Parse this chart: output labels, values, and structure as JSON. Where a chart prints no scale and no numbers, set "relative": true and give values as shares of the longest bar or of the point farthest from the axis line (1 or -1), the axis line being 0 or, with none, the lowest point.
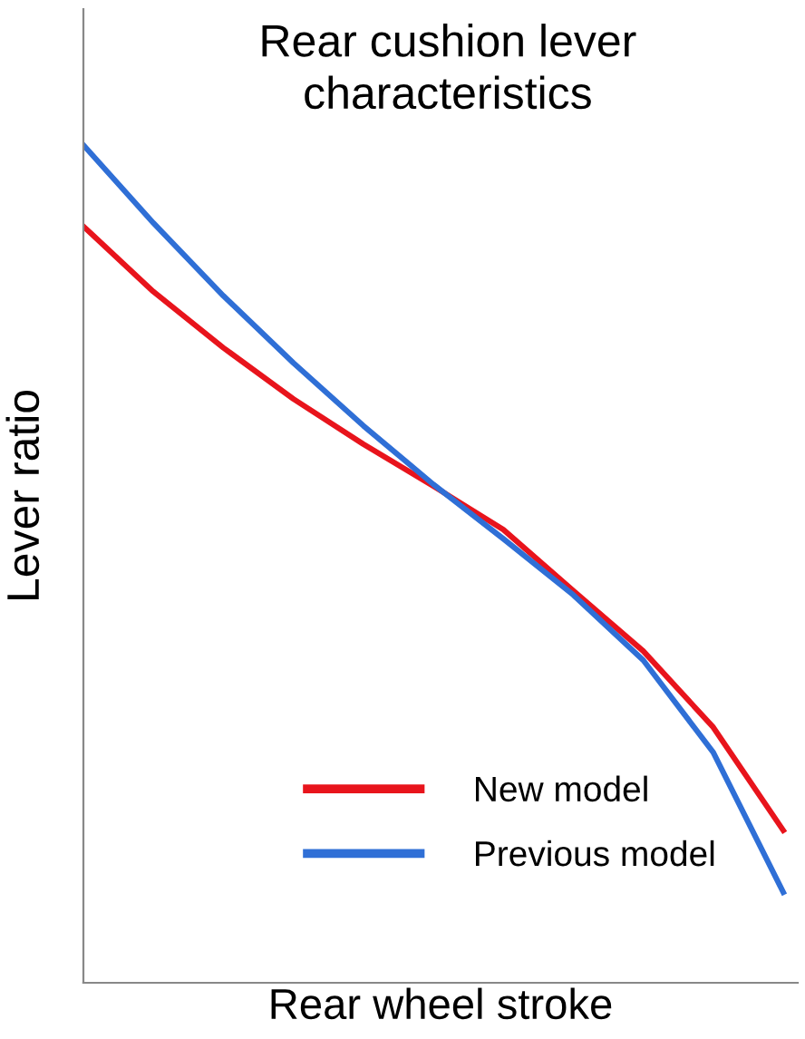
{
  "chart_data": {
    "type": "line",
    "title": "Rear cushion lever\ncharacteristics",
    "xlabel": "Rear wheel stroke",
    "ylabel": "Lever ratio",
    "relative": true,
    "categories": [
      null,
      null,
      null,
      null,
      null,
      null,
      null,
      null,
      null,
      null,
      null
    ],
    "series": [
      {
        "name": "New model",
        "color": "#e8141c",
        "values": [
          0.903,
          0.825,
          0.758,
          0.697,
          0.643,
          0.593,
          0.541,
          0.468,
          0.396,
          0.305,
          0.182
        ]
      },
      {
        "name": "Previous model",
        "color": "#2f6fd6",
        "values": [
          1.0,
          0.907,
          0.82,
          0.74,
          0.665,
          0.595,
          0.53,
          0.463,
          0.385,
          0.275,
          0.108
        ]
      }
    ],
    "legend": "bottom right",
    "marker": "none",
    "line_style": "solid"
  }
}
